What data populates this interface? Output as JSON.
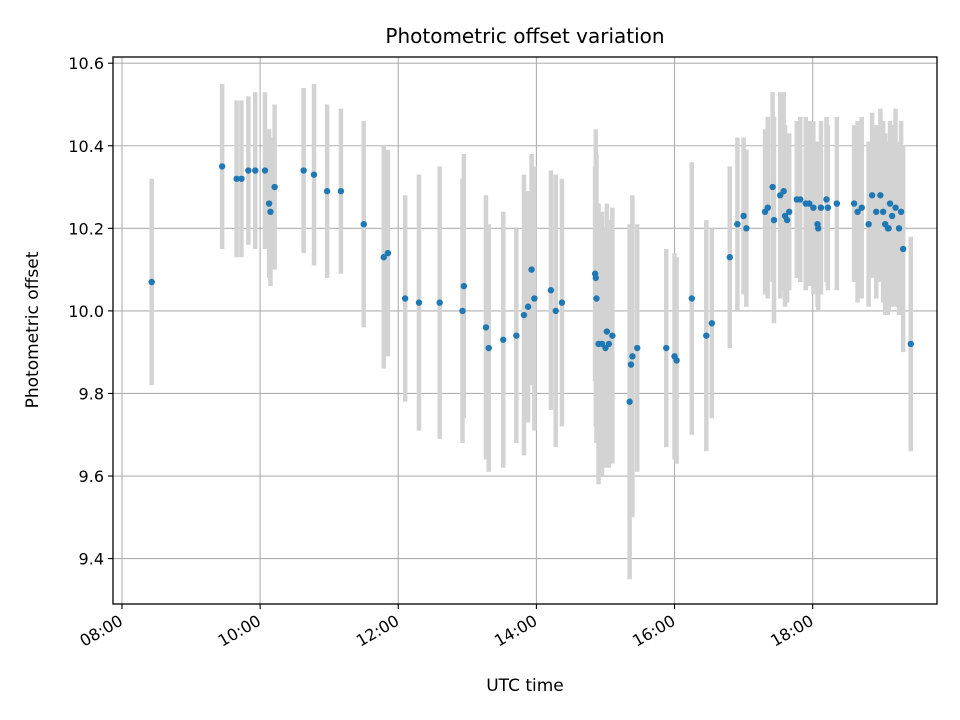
{
  "chart_data": {
    "type": "scatter",
    "title": "Photometric offset variation",
    "xlabel": "UTC time",
    "ylabel": "Photometric offset",
    "x_unit": "hours UTC",
    "xlim": [
      7.87,
      19.8
    ],
    "ylim": [
      9.29,
      10.615
    ],
    "x_ticks": [
      {
        "value": 8,
        "label": "08:00"
      },
      {
        "value": 10,
        "label": "10:00"
      },
      {
        "value": 12,
        "label": "12:00"
      },
      {
        "value": 14,
        "label": "14:00"
      },
      {
        "value": 16,
        "label": "16:00"
      },
      {
        "value": 18,
        "label": "18:00"
      }
    ],
    "y_ticks": [
      {
        "value": 9.4,
        "label": "9.4"
      },
      {
        "value": 9.6,
        "label": "9.6"
      },
      {
        "value": 9.8,
        "label": "9.8"
      },
      {
        "value": 10.0,
        "label": "10.0"
      },
      {
        "value": 10.2,
        "label": "10.2"
      },
      {
        "value": 10.4,
        "label": "10.4"
      },
      {
        "value": 10.6,
        "label": "10.6"
      }
    ],
    "grid": true,
    "x_tick_rotation": 30,
    "colors": {
      "points": "#1f77b4",
      "errorbars": "#d3d3d3",
      "grid": "#b0b0b0"
    },
    "series": [
      {
        "x": [
          8.43,
          9.45,
          9.66,
          9.73,
          9.83,
          9.93,
          10.07,
          10.13,
          10.15,
          10.21,
          10.63,
          10.78,
          10.97,
          11.17,
          11.5,
          11.79,
          11.85,
          12.1,
          12.3,
          12.6,
          12.93,
          12.95,
          13.27,
          13.31,
          13.52,
          13.71,
          13.82,
          13.88,
          13.93,
          13.97,
          14.21,
          14.28,
          14.37,
          14.85,
          14.86,
          14.87,
          14.9,
          14.95,
          15.0,
          15.02,
          15.05,
          15.1,
          15.35,
          15.37,
          15.39,
          15.46,
          15.88,
          16.0,
          16.03,
          16.25,
          16.46,
          16.54,
          16.8,
          16.91,
          17.0,
          17.04,
          17.31,
          17.35,
          17.42,
          17.44,
          17.53,
          17.58,
          17.6,
          17.63,
          17.66,
          17.77,
          17.82,
          17.9,
          17.95,
          18.01,
          18.07,
          18.08,
          18.12,
          18.2,
          18.22,
          18.35,
          18.6,
          18.65,
          18.71,
          18.81,
          18.86,
          18.92,
          18.98,
          19.02,
          19.05,
          19.09,
          19.1,
          19.12,
          19.15,
          19.2,
          19.25,
          19.28,
          19.31,
          19.42
        ],
        "y": [
          10.07,
          10.35,
          10.32,
          10.32,
          10.34,
          10.34,
          10.34,
          10.26,
          10.24,
          10.3,
          10.34,
          10.33,
          10.29,
          10.29,
          10.21,
          10.13,
          10.14,
          10.03,
          10.02,
          10.02,
          10.0,
          10.06,
          9.96,
          9.91,
          9.93,
          9.94,
          9.99,
          10.01,
          10.1,
          10.03,
          10.05,
          10.0,
          10.02,
          10.09,
          10.08,
          10.03,
          9.92,
          9.92,
          9.91,
          9.95,
          9.92,
          9.94,
          9.78,
          9.87,
          9.89,
          9.91,
          9.91,
          9.89,
          9.88,
          10.03,
          9.94,
          9.97,
          10.13,
          10.21,
          10.23,
          10.2,
          10.24,
          10.25,
          10.3,
          10.22,
          10.28,
          10.29,
          10.23,
          10.22,
          10.24,
          10.27,
          10.27,
          10.26,
          10.26,
          10.25,
          10.21,
          10.2,
          10.25,
          10.27,
          10.25,
          10.26,
          10.26,
          10.24,
          10.25,
          10.21,
          10.28,
          10.24,
          10.28,
          10.24,
          10.21,
          10.2,
          10.2,
          10.26,
          10.23,
          10.25,
          10.2,
          10.24,
          10.15,
          9.92
        ],
        "yerr": [
          0.25,
          0.2,
          0.19,
          0.19,
          0.18,
          0.19,
          0.19,
          0.18,
          0.18,
          0.2,
          0.2,
          0.22,
          0.21,
          0.2,
          0.25,
          0.27,
          0.25,
          0.25,
          0.31,
          0.33,
          0.32,
          0.32,
          0.32,
          0.3,
          0.31,
          0.26,
          0.34,
          0.28,
          0.28,
          0.32,
          0.29,
          0.33,
          0.3,
          0.26,
          0.36,
          0.35,
          0.34,
          0.32,
          0.29,
          0.31,
          0.3,
          0.31,
          0.43,
          0.34,
          0.39,
          0.3,
          0.24,
          0.25,
          0.25,
          0.33,
          0.28,
          0.23,
          0.22,
          0.21,
          0.19,
          0.19,
          0.2,
          0.22,
          0.23,
          0.25,
          0.25,
          0.24,
          0.22,
          0.2,
          0.19,
          0.19,
          0.2,
          0.21,
          0.2,
          0.21,
          0.2,
          0.2,
          0.21,
          0.2,
          0.2,
          0.21,
          0.19,
          0.22,
          0.22,
          0.2,
          0.2,
          0.21,
          0.21,
          0.22,
          0.22,
          0.21,
          0.2,
          0.2,
          0.22,
          0.24,
          0.21,
          0.22,
          0.25,
          0.26
        ]
      }
    ]
  }
}
